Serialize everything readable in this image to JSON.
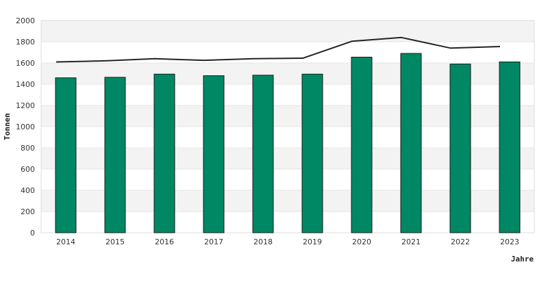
{
  "chart_data": {
    "type": "bar",
    "categories": [
      "2014",
      "2015",
      "2016",
      "2017",
      "2018",
      "2019",
      "2020",
      "2021",
      "2022",
      "2023"
    ],
    "series": [
      {
        "type": "bar",
        "values": [
          1460,
          1465,
          1495,
          1480,
          1485,
          1495,
          1655,
          1690,
          1590,
          1610
        ],
        "color": "#008763"
      },
      {
        "type": "line",
        "values": [
          1610,
          1620,
          1640,
          1625,
          1640,
          1645,
          1805,
          1840,
          1740,
          1755
        ],
        "color": "#222222"
      }
    ],
    "xlabel": "Jahre",
    "ylabel": "Tonnen",
    "ylim": [
      0,
      2000
    ],
    "yticks": [
      0,
      200,
      400,
      600,
      800,
      1000,
      1200,
      1400,
      1600,
      1800,
      2000
    ],
    "grid": "horizontal bands",
    "band_color": "#f3f3f3",
    "legend": "none"
  }
}
